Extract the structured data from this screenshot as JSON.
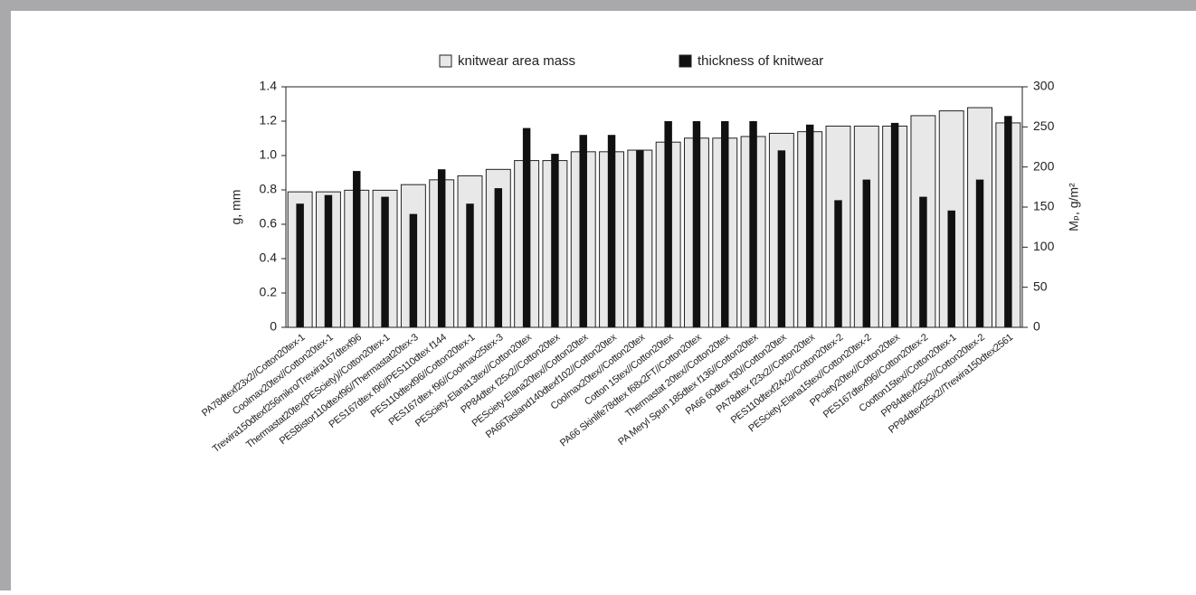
{
  "chart_data": {
    "type": "bar",
    "ylabel": "g, mm",
    "y2label": "Mₚ, g/m²",
    "categories": [
      "PA78dtexf23x2//Cotton20tex-1",
      "Coolmax20tex//Cotton20tex-1",
      "Trewira150dtexf256mikro/Trewira167dtexf96",
      "Thermastat20tex(PESciety)//Cotton20tex-1",
      "PESBistor110dtexf96//Thermastat20tex-3",
      "PES167dtex f96//PES110dtex f144",
      "PES110dtexf96//Cotton20tex-1",
      "PES167dtex f96//Coolmax25tex-3",
      "PESciety-Elana13tex//Cotton20tex",
      "PP84dtex f25x2//Cotton20tex",
      "PESciety-Elana20tex//Cotton20tex",
      "PA66Tasland140dtexf102//Cotton20tex",
      "Coolmax20tex//Cotton20tex",
      "Cotton 15tex//Cotton20tex",
      "PA66 Skinlife78dtex f68x2FT//Cotton20tex",
      "Thermastat 20tex//Cotton20tex",
      "PA Meryl Spun 185dtex f136//Cotton20tex",
      "PA66 60dtex f30//Cotton20tex",
      "PA78dtex f23x2//Cotton20tex",
      "PES110dtexf24x2//Cotton20tex-2",
      "PESciety-Elana15tex//Cotton20tex-2",
      "PPciety20tex//Cotton20tex",
      "PES167dtexf96//Cotton20tex-2",
      "Cootton15tex//Cotton20tex-1",
      "PP84dtexf25x2//Cotton20tex-2",
      "PP84dtexf25x2//Trewira150dtex2561"
    ],
    "series": [
      {
        "name": "knitwear area mass",
        "color": "#e8e8e8",
        "axis": "y2",
        "values": [
          169,
          169,
          171,
          171,
          178,
          184,
          189,
          197,
          208,
          208,
          219,
          219,
          221,
          231,
          236,
          236,
          238,
          242,
          244,
          251,
          251,
          251,
          264,
          270,
          274,
          255
        ]
      },
      {
        "name": "thickness of knitwear",
        "color": "#111111",
        "values": [
          0.72,
          0.77,
          0.91,
          0.76,
          0.66,
          0.92,
          0.72,
          0.81,
          1.16,
          1.01,
          1.12,
          1.12,
          1.03,
          1.2,
          1.2,
          1.2,
          1.2,
          1.03,
          1.18,
          0.74,
          0.86,
          1.19,
          0.76,
          0.68,
          0.86,
          1.23
        ]
      }
    ],
    "ylim": [
      0,
      1.4
    ],
    "yticks": [
      0,
      0.2,
      0.4,
      0.6,
      0.8,
      {
        "value": 1,
        "label": "1.0"
      },
      1.2,
      1.4
    ],
    "y2lim": [
      0,
      300
    ],
    "y2ticks": [
      0,
      50,
      100,
      150,
      200,
      250,
      300
    ],
    "grid": false
  }
}
